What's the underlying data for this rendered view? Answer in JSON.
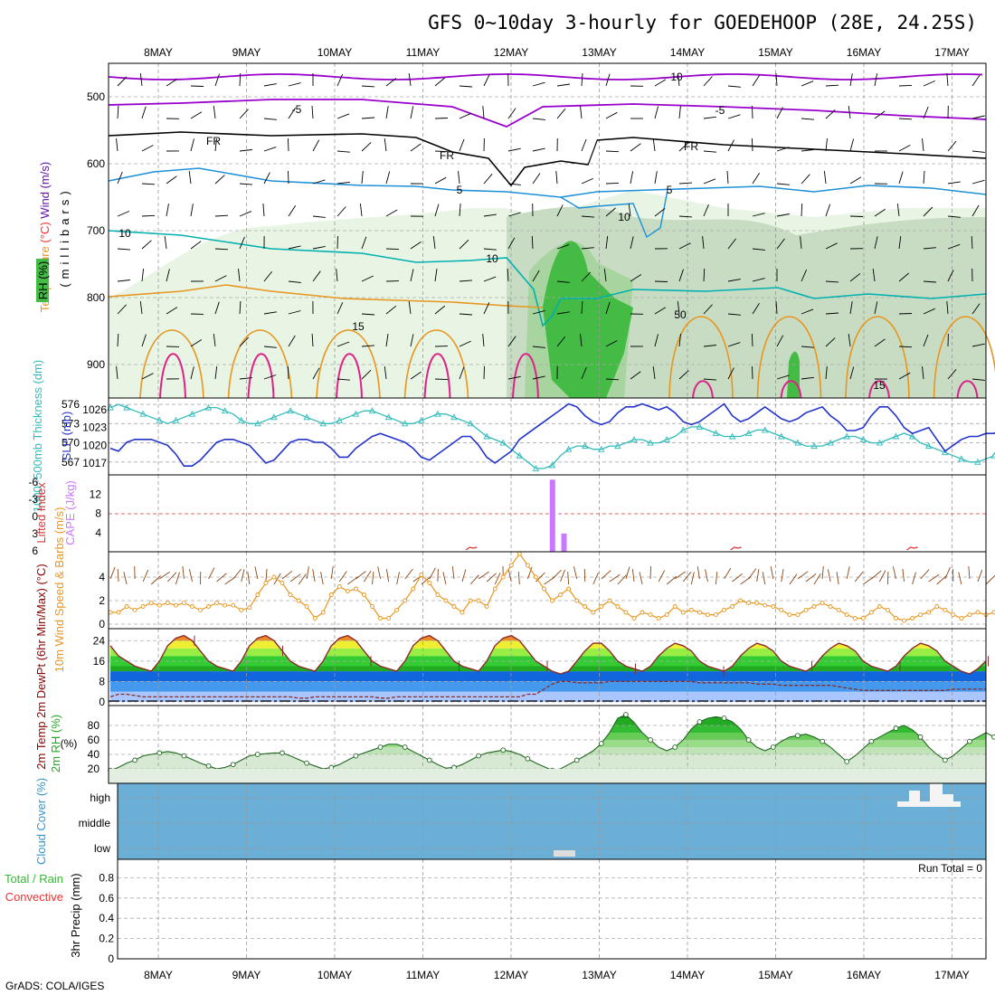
{
  "title": "GFS 0~10day 3-hourly for GOEDEHOOP (28E, 24.25S)",
  "footer": "GrADS: COLA/IGES",
  "dates": [
    "8MAY",
    "9MAY",
    "10MAY",
    "11MAY",
    "12MAY",
    "13MAY",
    "14MAY",
    "15MAY",
    "16MAY",
    "17MAY"
  ],
  "colors": {
    "temp_purple": "#9900cc",
    "freeze": "#000000",
    "temp_blue": "#1e90d8",
    "temp_cyan": "#00b0b0",
    "temp_orange": "#e8961e",
    "temp_magenta": "#dd2288",
    "rh_light": "#e8f4e4",
    "rh_mid": "#a8d4a0",
    "rh_green": "#44bb44",
    "thickness": "#33bbbb",
    "slp": "#2233cc",
    "cape": "#cc77ff",
    "li": "#dd3333",
    "wind10": "#e8961e",
    "barb": "#8b4513",
    "cloud": "#6baed6",
    "cloud_white": "#f4f4f4"
  },
  "chart_data": [
    {
      "type": "contour",
      "panel": "upper-air",
      "ylabel_parts": [
        "Temperature",
        "(°C)",
        "Wind",
        "(m/s)"
      ],
      "axis_label": "(millibars)",
      "rh_label": "RH (%)",
      "ylim": [
        950,
        450
      ],
      "yticks": [
        "500",
        "600",
        "700",
        "800",
        "900"
      ],
      "contour_labels": [
        "10",
        "-5",
        "-5",
        "FR",
        "FR",
        "FR",
        "5",
        "5",
        "10",
        "10",
        "15",
        "15",
        "10",
        "50"
      ],
      "temperature_levels": [
        -10,
        -5,
        0,
        5,
        10,
        15,
        20
      ]
    },
    {
      "type": "line",
      "panel": "thickness-slp",
      "ylabel_left": "1000~500mb Thickness (dm)",
      "ylabel_right": "SLP (mb)",
      "yticks_left": [
        "576",
        "573",
        "570",
        "567"
      ],
      "yticks_right": [
        "1026",
        "1023",
        "1020",
        "1017"
      ],
      "ylim_thickness": [
        565,
        577
      ],
      "ylim_slp": [
        1015,
        1028
      ],
      "series": [
        {
          "name": "Thickness",
          "values": [
            575.5,
            576,
            575.5,
            575,
            574.5,
            574,
            573.5,
            573,
            573.5,
            574,
            574.5,
            575,
            575.5,
            575.5,
            575,
            574.5,
            573.5,
            573,
            573,
            573.5,
            574,
            574.5,
            575,
            574.5,
            574,
            573.5,
            573,
            573,
            573.5,
            574,
            574.5,
            575,
            575,
            574.5,
            574,
            573.5,
            573,
            573,
            573.5,
            574,
            574.5,
            574.5,
            574,
            573.5,
            573,
            572,
            571,
            570.5,
            570,
            569,
            568,
            567,
            566,
            566,
            566.5,
            568,
            569,
            569.5,
            569.5,
            569,
            569,
            569.5,
            569.5,
            570,
            570.5,
            570.5,
            570,
            570,
            570.5,
            571,
            572,
            572.5,
            572.5,
            572,
            571.5,
            571,
            571,
            571,
            571.5,
            572,
            572,
            571.5,
            571,
            570.5,
            570,
            569.5,
            569.5,
            569.5,
            570,
            570.5,
            571,
            571,
            570.5,
            570,
            570,
            570.5,
            571,
            571.5,
            571,
            570,
            569.5,
            569,
            568.5,
            568,
            567.5,
            567,
            567,
            567.5,
            568
          ]
        },
        {
          "name": "SLP",
          "values": [
            1019.5,
            1019,
            1020.5,
            1021,
            1021,
            1021,
            1020.5,
            1020,
            1018.5,
            1016.5,
            1016.5,
            1017.5,
            1019,
            1020.5,
            1021,
            1021,
            1020.5,
            1020,
            1018.5,
            1017,
            1017.5,
            1019,
            1020.5,
            1021,
            1021,
            1020.5,
            1020.5,
            1019.5,
            1018,
            1018,
            1019.5,
            1020.5,
            1021.5,
            1022,
            1021.5,
            1021,
            1020.5,
            1019.5,
            1018,
            1017.5,
            1018.5,
            1019.5,
            1020.5,
            1021.5,
            1021.5,
            1020,
            1018,
            1017,
            1018,
            1019,
            1021,
            1022,
            1023,
            1024,
            1025,
            1026,
            1027,
            1026.5,
            1025,
            1024,
            1023.5,
            1024,
            1025.5,
            1026.5,
            1026.5,
            1027,
            1026.5,
            1026,
            1026.5,
            1025.5,
            1024,
            1023.5,
            1024,
            1025,
            1026,
            1027,
            1025,
            1024,
            1024.5,
            1025.5,
            1026.5,
            1025.5,
            1024.5,
            1024,
            1024.5,
            1025.5,
            1026,
            1026.5,
            1025,
            1024,
            1022.5,
            1022.5,
            1023,
            1025,
            1026.5,
            1026.5,
            1025,
            1023,
            1022,
            1022.5,
            1023,
            1021,
            1019,
            1020,
            1021,
            1021.5,
            1021.5,
            1022,
            1022,
            1023
          ]
        }
      ]
    },
    {
      "type": "bar",
      "panel": "cape-li",
      "ylabel_left": "Lifted Index",
      "ylabel_right": "CAPE (J/kg)",
      "yticks_left": [
        "-6",
        "-3",
        "0",
        "3",
        "6"
      ],
      "yticks_right": [
        "12",
        "8",
        "4"
      ],
      "ylim_cape": [
        0,
        16
      ],
      "cape_bars": [
        {
          "day": 4.47,
          "value": 15
        },
        {
          "day": 4.6,
          "value": 3.8
        }
      ],
      "li_marks": [
        {
          "day": 3.55
        },
        {
          "day": 6.55
        },
        {
          "day": 8.55
        }
      ]
    },
    {
      "type": "line",
      "panel": "wind10m",
      "ylabel": "10m Wind Speed & Barbs (m/s)",
      "yticks": [
        "4",
        "2",
        "0"
      ],
      "ylim": [
        0,
        5
      ],
      "series": [
        {
          "name": "10m Wind",
          "values": [
            1,
            1,
            1.5,
            1.2,
            1.5,
            1.8,
            1.6,
            1.8,
            1.6,
            1.8,
            1.5,
            1.2,
            1.5,
            1.8,
            1.6,
            1.6,
            1.2,
            1.4,
            2.5,
            3.5,
            4,
            3.5,
            2.5,
            2,
            1.5,
            0.5,
            1,
            2.5,
            3.2,
            2.8,
            3,
            2.5,
            1.5,
            0.5,
            0.5,
            1.2,
            2,
            3,
            4.2,
            3.5,
            2.5,
            2,
            1.5,
            1,
            2,
            2,
            1.5,
            3,
            4,
            5,
            6,
            5,
            4,
            3,
            2,
            2.5,
            3,
            2,
            1.5,
            1,
            1.5,
            2,
            1.5,
            1,
            0.5,
            1,
            0.8,
            0.5,
            0.8,
            1.5,
            1,
            1.2,
            1,
            0.8,
            0.8,
            1.2,
            1.5,
            2,
            1.8,
            1.8,
            1.6,
            1.5,
            1.2,
            0.8,
            0.8,
            1.2,
            1.5,
            1.8,
            1.5,
            1.2,
            0.8,
            0.5,
            0.5,
            1,
            1.5,
            1.2,
            0.5,
            0.3,
            0.5,
            0.8,
            1,
            1.5,
            1.2,
            0.8,
            0.5,
            0.8,
            1,
            0.8,
            1
          ]
        }
      ]
    },
    {
      "type": "area",
      "panel": "temp2m",
      "ylabel": "2m Temp 2m DewPt (6hr Min/Max) (°C)",
      "yticks": [
        "24",
        "16",
        "8",
        "0"
      ],
      "ylim": [
        0,
        28
      ],
      "temp_bands": [
        {
          "from": 0,
          "to": 4,
          "color": "#a9c6ff"
        },
        {
          "from": 4,
          "to": 8,
          "color": "#4499ee"
        },
        {
          "from": 8,
          "to": 12,
          "color": "#1166dd"
        },
        {
          "from": 12,
          "to": 14,
          "color": "#22aa22"
        },
        {
          "from": 14,
          "to": 18,
          "color": "#33cc33"
        },
        {
          "from": 18,
          "to": 21,
          "color": "#99ee44"
        },
        {
          "from": 21,
          "to": 24,
          "color": "#eeee33"
        },
        {
          "from": 24,
          "to": 28,
          "color": "#ee8822"
        }
      ],
      "series": [
        {
          "name": "2m Temp",
          "values": [
            22,
            18,
            16,
            14,
            13,
            12,
            16,
            22,
            25,
            26,
            24,
            20,
            16,
            14,
            13,
            12,
            16,
            22,
            25,
            26,
            24,
            20,
            16,
            14,
            13,
            12,
            16,
            22,
            25,
            26,
            24,
            20,
            16,
            14,
            13,
            12,
            16,
            22,
            25,
            26,
            24,
            20,
            16,
            14,
            13,
            12,
            16,
            22,
            25,
            26,
            24,
            20,
            16,
            14,
            12,
            11,
            12,
            16,
            20,
            23,
            23,
            20,
            16,
            14,
            13,
            12,
            14,
            18,
            21,
            23,
            22,
            20,
            16,
            14,
            13,
            12,
            14,
            18,
            21,
            23,
            22,
            20,
            16,
            14,
            13,
            12,
            14,
            18,
            21,
            23,
            22,
            20,
            16,
            14,
            13,
            12,
            14,
            18,
            21,
            23,
            22,
            20,
            16,
            14,
            12,
            11,
            13,
            16
          ]
        },
        {
          "name": "2m DewPt",
          "values": [
            2,
            3,
            3,
            2.5,
            2,
            2,
            2,
            2,
            2,
            2,
            2,
            2,
            2,
            2,
            2,
            2,
            2,
            2,
            2,
            2,
            2,
            2,
            2,
            1.5,
            1.5,
            2,
            2,
            2,
            2,
            2,
            2,
            2,
            2,
            1.5,
            1.5,
            2,
            2,
            2,
            2,
            2,
            2,
            2,
            2,
            2,
            2,
            2,
            2,
            2,
            2,
            2,
            2,
            3,
            3,
            5,
            7,
            8,
            8,
            7.5,
            7.5,
            7.5,
            7.5,
            8,
            8,
            8,
            8,
            8,
            8,
            8,
            8,
            8,
            8,
            8,
            7.5,
            7.5,
            7.5,
            7.5,
            7.5,
            7.5,
            7.5,
            7,
            7,
            7,
            6.5,
            6.5,
            6.5,
            6.5,
            6.5,
            6.5,
            6.5,
            6,
            5.5,
            5,
            4.5,
            4.5,
            4.5,
            4.5,
            4.5,
            4.5,
            4.5,
            4.5,
            4.5,
            4.5,
            4.5,
            5,
            5,
            5,
            5,
            5
          ]
        }
      ]
    },
    {
      "type": "area",
      "panel": "rh2m",
      "ylabel": "2m RH (%)",
      "yticks": [
        "80",
        "60",
        "40",
        "20"
      ],
      "ylim": [
        15,
        95
      ],
      "series": [
        {
          "name": "2m RH",
          "values": [
            18,
            22,
            28,
            32,
            38,
            40,
            42,
            44,
            42,
            38,
            33,
            28,
            24,
            20,
            22,
            26,
            32,
            38,
            40,
            41,
            42,
            42,
            38,
            33,
            28,
            24,
            20,
            22,
            26,
            32,
            38,
            42,
            46,
            50,
            54,
            54,
            50,
            44,
            38,
            32,
            26,
            21,
            22,
            26,
            32,
            38,
            42,
            44,
            46,
            44,
            40,
            34,
            28,
            23,
            18,
            20,
            26,
            32,
            38,
            45,
            55,
            70,
            90,
            95,
            84,
            70,
            60,
            50,
            45,
            50,
            60,
            75,
            85,
            90,
            92,
            90,
            85,
            75,
            60,
            50,
            45,
            50,
            58,
            64,
            66,
            68,
            64,
            58,
            50,
            40,
            30,
            38,
            48,
            58,
            64,
            70,
            76,
            80,
            74,
            64,
            50,
            40,
            32,
            38,
            48,
            58,
            64,
            70,
            64,
            55
          ]
        }
      ]
    },
    {
      "type": "heatmap",
      "panel": "cloud",
      "ylabel": "Cloud Cover (%)",
      "yticks": [
        "high",
        "middle",
        "low"
      ]
    },
    {
      "type": "bar",
      "panel": "precip",
      "ylabel": "3hr Precip (mm)",
      "side_label_1": "Total / Rain",
      "side_label_2": "Convective",
      "yticks": [
        "0.8",
        "0.6",
        "0.4",
        "0.2",
        "0"
      ],
      "ylim": [
        0,
        1
      ],
      "run_total": "Run Total = 0",
      "values": []
    }
  ]
}
